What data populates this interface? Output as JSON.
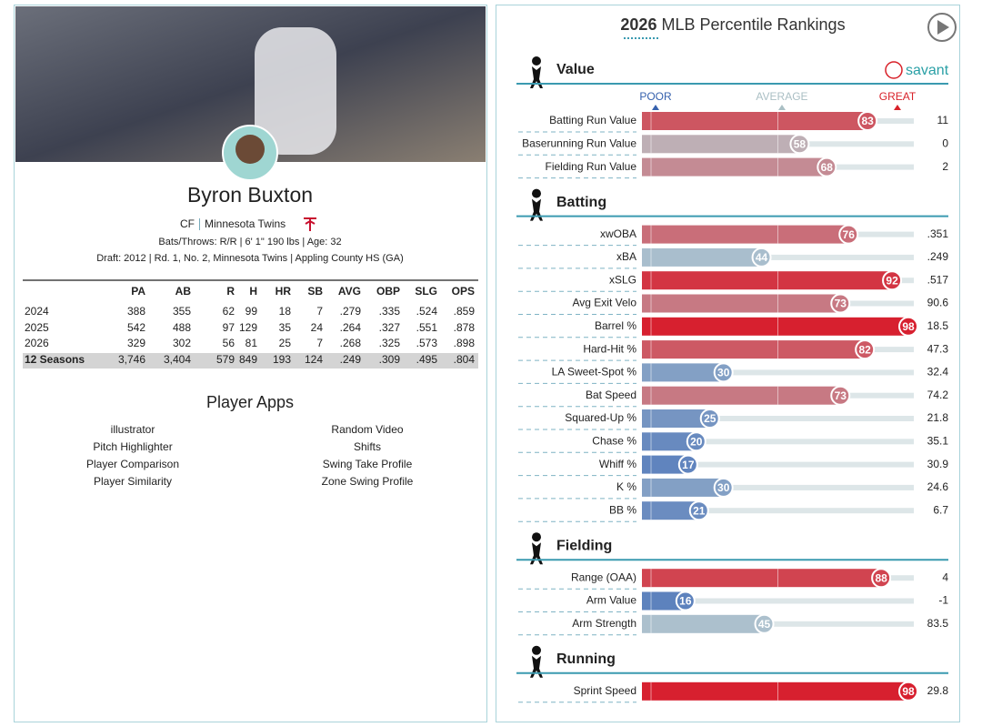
{
  "player": {
    "name": "Byron Buxton",
    "position": "CF",
    "team": "Minnesota Twins",
    "bio": "Bats/Throws: R/R | 6' 1\" 190 lbs | Age: 32",
    "draft": "Draft: 2012 | Rd. 1, No. 2, Minnesota Twins | Appling County HS (GA)"
  },
  "stats": {
    "columns": [
      "PA",
      "AB",
      "R",
      "H",
      "HR",
      "SB",
      "AVG",
      "OBP",
      "SLG",
      "OPS"
    ],
    "rows": [
      [
        "2024",
        "388",
        "355",
        "62",
        "99",
        "18",
        "7",
        ".279",
        ".335",
        ".524",
        ".859"
      ],
      [
        "2025",
        "542",
        "488",
        "97",
        "129",
        "35",
        "24",
        ".264",
        ".327",
        ".551",
        ".878"
      ],
      [
        "2026",
        "329",
        "302",
        "56",
        "81",
        "25",
        "7",
        ".268",
        ".325",
        ".573",
        ".898"
      ],
      [
        "12 Seasons",
        "3,746",
        "3,404",
        "579",
        "849",
        "193",
        "124",
        ".249",
        ".309",
        ".495",
        ".804"
      ]
    ]
  },
  "apps": {
    "title": "Player Apps",
    "left": [
      "illustrator",
      "Pitch Highlighter",
      "Player Comparison",
      "Player Similarity"
    ],
    "right": [
      "Random Video",
      "Shifts",
      "Swing Take Profile",
      "Zone Swing Profile"
    ]
  },
  "rankings": {
    "year": "2026",
    "title": "MLB Percentile Rankings",
    "brand": "savant",
    "scale": [
      "POOR",
      "AVERAGE",
      "GREAT"
    ],
    "sections": [
      {
        "name": "Value",
        "metrics": [
          {
            "label": "Batting Run Value",
            "percentile": 83,
            "value": "11"
          },
          {
            "label": "Baserunning Run Value",
            "percentile": 58,
            "value": "0"
          },
          {
            "label": "Fielding Run Value",
            "percentile": 68,
            "value": "2"
          }
        ]
      },
      {
        "name": "Batting",
        "metrics": [
          {
            "label": "xwOBA",
            "percentile": 76,
            "value": ".351"
          },
          {
            "label": "xBA",
            "percentile": 44,
            "value": ".249"
          },
          {
            "label": "xSLG",
            "percentile": 92,
            "value": ".517"
          },
          {
            "label": "Avg Exit Velo",
            "percentile": 73,
            "value": "90.6"
          },
          {
            "label": "Barrel %",
            "percentile": 98,
            "value": "18.5"
          },
          {
            "label": "Hard-Hit %",
            "percentile": 82,
            "value": "47.3"
          },
          {
            "label": "LA Sweet-Spot %",
            "percentile": 30,
            "value": "32.4"
          },
          {
            "label": "Bat Speed",
            "percentile": 73,
            "value": "74.2"
          },
          {
            "label": "Squared-Up %",
            "percentile": 25,
            "value": "21.8"
          },
          {
            "label": "Chase %",
            "percentile": 20,
            "value": "35.1"
          },
          {
            "label": "Whiff %",
            "percentile": 17,
            "value": "30.9"
          },
          {
            "label": "K %",
            "percentile": 30,
            "value": "24.6"
          },
          {
            "label": "BB %",
            "percentile": 21,
            "value": "6.7"
          }
        ]
      },
      {
        "name": "Fielding",
        "metrics": [
          {
            "label": "Range (OAA)",
            "percentile": 88,
            "value": "4"
          },
          {
            "label": "Arm Value",
            "percentile": 16,
            "value": "-1"
          },
          {
            "label": "Arm Strength",
            "percentile": 45,
            "value": "83.5"
          }
        ]
      },
      {
        "name": "Running",
        "metrics": [
          {
            "label": "Sprint Speed",
            "percentile": 98,
            "value": "29.8"
          }
        ]
      }
    ]
  }
}
